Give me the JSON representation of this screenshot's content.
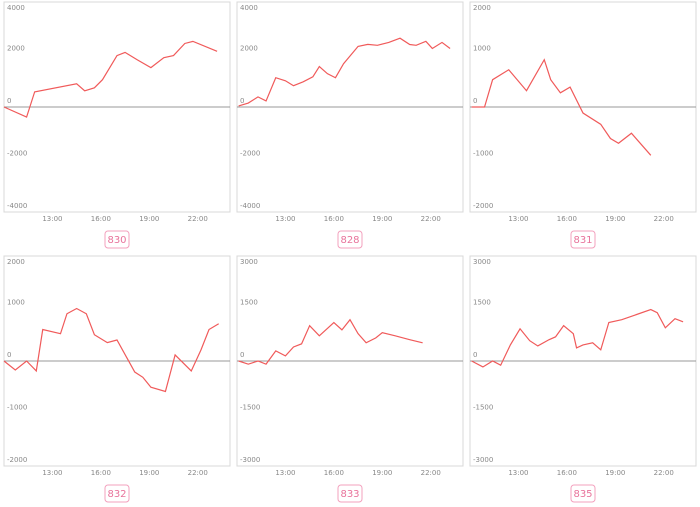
{
  "chart_data": [
    {
      "type": "line",
      "title": "830",
      "color": "#f05a5a",
      "xlim": [
        10,
        24
      ],
      "ylim": [
        -4000,
        4000
      ],
      "yticks": [
        4000,
        2000,
        0,
        -2000,
        -4000
      ],
      "xticks": [
        {
          "value": 13,
          "label": "13:00"
        },
        {
          "value": 16,
          "label": "16:00"
        },
        {
          "value": 19,
          "label": "19:00"
        },
        {
          "value": 22,
          "label": "22:00"
        }
      ],
      "x": [
        10.0,
        11.4,
        11.9,
        14.5,
        15.0,
        15.6,
        16.1,
        17.0,
        17.5,
        18.25,
        19.1,
        19.9,
        20.5,
        21.2,
        21.7,
        23.2
      ],
      "values": [
        0,
        -385,
        577,
        885,
        615,
        730,
        1040,
        1960,
        2080,
        1800,
        1500,
        1880,
        1960,
        2420,
        2500,
        2120
      ]
    },
    {
      "type": "line",
      "title": "828",
      "color": "#f05a5a",
      "xlim": [
        10,
        24
      ],
      "ylim": [
        -4000,
        4000
      ],
      "yticks": [
        4000,
        2000,
        0,
        -2000,
        -4000
      ],
      "xticks": [
        {
          "value": 13,
          "label": "13:00"
        },
        {
          "value": 16,
          "label": "16:00"
        },
        {
          "value": 19,
          "label": "19:00"
        },
        {
          "value": 22,
          "label": "22:00"
        }
      ],
      "x": [
        10.1,
        10.7,
        11.3,
        11.8,
        12.4,
        13.0,
        13.5,
        14.1,
        14.7,
        15.1,
        15.6,
        16.1,
        16.6,
        17.5,
        18.1,
        18.7,
        19.4,
        20.1,
        20.7,
        21.1,
        21.7,
        22.1,
        22.7,
        23.2
      ],
      "values": [
        40,
        150,
        385,
        230,
        1115,
        1000,
        810,
        960,
        1150,
        1540,
        1270,
        1115,
        1650,
        2310,
        2385,
        2350,
        2460,
        2620,
        2380,
        2350,
        2500,
        2230,
        2460,
        2230
      ]
    },
    {
      "type": "line",
      "title": "831",
      "color": "#f05a5a",
      "xlim": [
        10,
        24
      ],
      "ylim": [
        -2000,
        2000
      ],
      "yticks": [
        2000,
        1000,
        0,
        -1000,
        -2000
      ],
      "xticks": [
        {
          "value": 13,
          "label": "13:00"
        },
        {
          "value": 16,
          "label": "16:00"
        },
        {
          "value": 19,
          "label": "19:00"
        },
        {
          "value": 22,
          "label": "22:00"
        }
      ],
      "x": [
        10.1,
        10.9,
        11.4,
        12.4,
        13.5,
        14.6,
        15.0,
        15.6,
        16.2,
        17.0,
        18.1,
        18.7,
        19.2,
        20.0,
        21.2
      ],
      "values": [
        0,
        0,
        520,
        710,
        310,
        900,
        520,
        270,
        380,
        -115,
        -330,
        -600,
        -690,
        -500,
        -920
      ]
    },
    {
      "type": "line",
      "title": "832",
      "color": "#f05a5a",
      "xlim": [
        10,
        24
      ],
      "ylim": [
        -2000,
        2000
      ],
      "yticks": [
        2000,
        1000,
        0,
        -1000,
        -2000
      ],
      "xticks": [
        {
          "value": 13,
          "label": "13:00"
        },
        {
          "value": 16,
          "label": "16:00"
        },
        {
          "value": 19,
          "label": "19:00"
        },
        {
          "value": 22,
          "label": "22:00"
        }
      ],
      "x": [
        10.0,
        10.7,
        11.4,
        12.0,
        12.4,
        13.5,
        13.9,
        14.5,
        15.1,
        15.6,
        16.4,
        17.0,
        18.1,
        18.6,
        19.1,
        20.0,
        20.6,
        21.6,
        22.2,
        22.7,
        23.3
      ],
      "values": [
        0,
        -170,
        0,
        -190,
        600,
        520,
        900,
        1000,
        900,
        500,
        350,
        400,
        -210,
        -310,
        -500,
        -580,
        115,
        -190,
        210,
        600,
        710
      ]
    },
    {
      "type": "line",
      "title": "833",
      "color": "#f05a5a",
      "xlim": [
        10,
        24
      ],
      "ylim": [
        -3000,
        3000
      ],
      "yticks": [
        3000,
        1500,
        0,
        -1500,
        -3000
      ],
      "xticks": [
        {
          "value": 13,
          "label": "13:00"
        },
        {
          "value": 16,
          "label": "16:00"
        },
        {
          "value": 19,
          "label": "19:00"
        },
        {
          "value": 22,
          "label": "22:00"
        }
      ],
      "x": [
        10.1,
        10.7,
        11.3,
        11.8,
        12.4,
        13.0,
        13.5,
        14.0,
        14.5,
        15.1,
        16.0,
        16.5,
        17.0,
        17.5,
        18.0,
        18.6,
        19.0,
        19.8,
        20.7,
        21.5
      ],
      "values": [
        0,
        -90,
        0,
        -90,
        290,
        145,
        400,
        490,
        1010,
        720,
        1100,
        890,
        1180,
        780,
        520,
        660,
        810,
        720,
        610,
        520
      ]
    },
    {
      "type": "line",
      "title": "835",
      "color": "#f05a5a",
      "xlim": [
        10,
        24
      ],
      "ylim": [
        -3000,
        3000
      ],
      "yticks": [
        3000,
        1500,
        0,
        -1500,
        -3000
      ],
      "xticks": [
        {
          "value": 13,
          "label": "13:00"
        },
        {
          "value": 16,
          "label": "16:00"
        },
        {
          "value": 19,
          "label": "19:00"
        },
        {
          "value": 22,
          "label": "22:00"
        }
      ],
      "x": [
        10.1,
        10.8,
        11.4,
        11.9,
        12.5,
        13.1,
        13.7,
        14.2,
        14.9,
        15.3,
        15.8,
        16.4,
        16.6,
        17.0,
        17.6,
        18.1,
        18.6,
        19.4,
        21.2,
        21.6,
        22.1,
        22.7,
        23.2
      ],
      "values": [
        0,
        -170,
        0,
        -120,
        460,
        920,
        580,
        430,
        610,
        690,
        1010,
        780,
        375,
        460,
        520,
        320,
        1100,
        1180,
        1470,
        1380,
        950,
        1210,
        1120
      ]
    }
  ]
}
